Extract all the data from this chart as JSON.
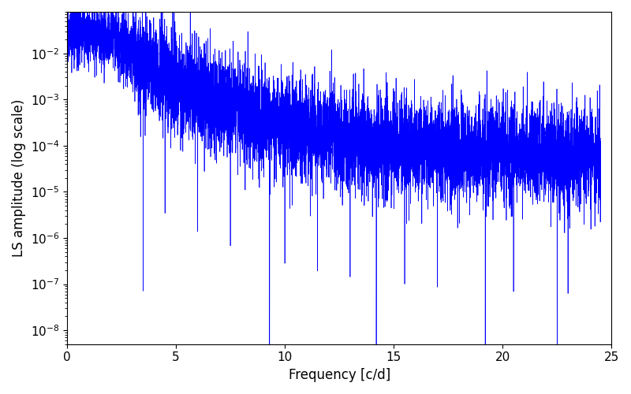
{
  "xlabel": "Frequency [c/d]",
  "ylabel": "LS amplitude (log scale)",
  "xlim": [
    0,
    25
  ],
  "ylim": [
    5e-09,
    0.08
  ],
  "line_color": "#0000ff",
  "line_width": 0.5,
  "background_color": "#ffffff",
  "freq_max": 24.5,
  "n_points": 8000,
  "seed": 7,
  "tick_label_fontsize": 11,
  "axis_label_fontsize": 12
}
